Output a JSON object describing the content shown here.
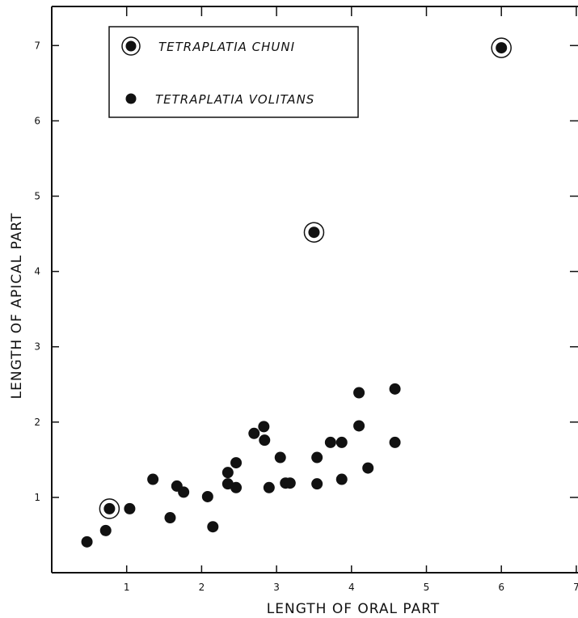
{
  "chart_data": {
    "type": "scatter",
    "xlabel": "LENGTH OF ORAL PART",
    "ylabel": "LENGTH OF APICAL PART",
    "xlim": [
      0,
      7
    ],
    "ylim": [
      0,
      7.5
    ],
    "x_ticks": [
      1,
      2,
      3,
      4,
      5,
      6,
      7
    ],
    "x_tick_labels": [
      "1",
      "2",
      "3",
      "4",
      "5",
      "6",
      "7"
    ],
    "y_ticks": [
      1,
      2,
      3,
      4,
      5,
      6,
      7
    ],
    "y_tick_labels": [
      "1",
      "2",
      "3",
      "4",
      "5",
      "6",
      "7"
    ],
    "legend_position": "top-left",
    "grid": false,
    "series": [
      {
        "name": "TETRAPLATIA CHUNI",
        "marker": "circled-dot",
        "points": [
          {
            "x": 0.77,
            "y": 0.85
          },
          {
            "x": 3.5,
            "y": 4.52
          },
          {
            "x": 6.0,
            "y": 6.97
          }
        ]
      },
      {
        "name": "TETRAPLATIA VOLITANS",
        "marker": "dot",
        "points": [
          {
            "x": 0.47,
            "y": 0.41
          },
          {
            "x": 0.72,
            "y": 0.56
          },
          {
            "x": 1.04,
            "y": 0.85
          },
          {
            "x": 1.35,
            "y": 1.24
          },
          {
            "x": 1.58,
            "y": 0.73
          },
          {
            "x": 1.67,
            "y": 1.15
          },
          {
            "x": 1.76,
            "y": 1.07
          },
          {
            "x": 2.08,
            "y": 1.01
          },
          {
            "x": 2.15,
            "y": 0.61
          },
          {
            "x": 2.35,
            "y": 1.33
          },
          {
            "x": 2.35,
            "y": 1.18
          },
          {
            "x": 2.46,
            "y": 1.46
          },
          {
            "x": 2.46,
            "y": 1.13
          },
          {
            "x": 2.7,
            "y": 1.85
          },
          {
            "x": 2.83,
            "y": 1.94
          },
          {
            "x": 2.84,
            "y": 1.76
          },
          {
            "x": 2.9,
            "y": 1.13
          },
          {
            "x": 3.05,
            "y": 1.53
          },
          {
            "x": 3.12,
            "y": 1.19
          },
          {
            "x": 3.18,
            "y": 1.19
          },
          {
            "x": 3.54,
            "y": 1.53
          },
          {
            "x": 3.54,
            "y": 1.18
          },
          {
            "x": 3.72,
            "y": 1.73
          },
          {
            "x": 3.87,
            "y": 1.73
          },
          {
            "x": 3.87,
            "y": 1.24
          },
          {
            "x": 4.1,
            "y": 1.95
          },
          {
            "x": 4.1,
            "y": 2.39
          },
          {
            "x": 4.22,
            "y": 1.39
          },
          {
            "x": 4.58,
            "y": 2.44
          },
          {
            "x": 4.58,
            "y": 1.73
          }
        ]
      }
    ]
  },
  "colors": {
    "ink": "#111111",
    "background": "#ffffff"
  }
}
